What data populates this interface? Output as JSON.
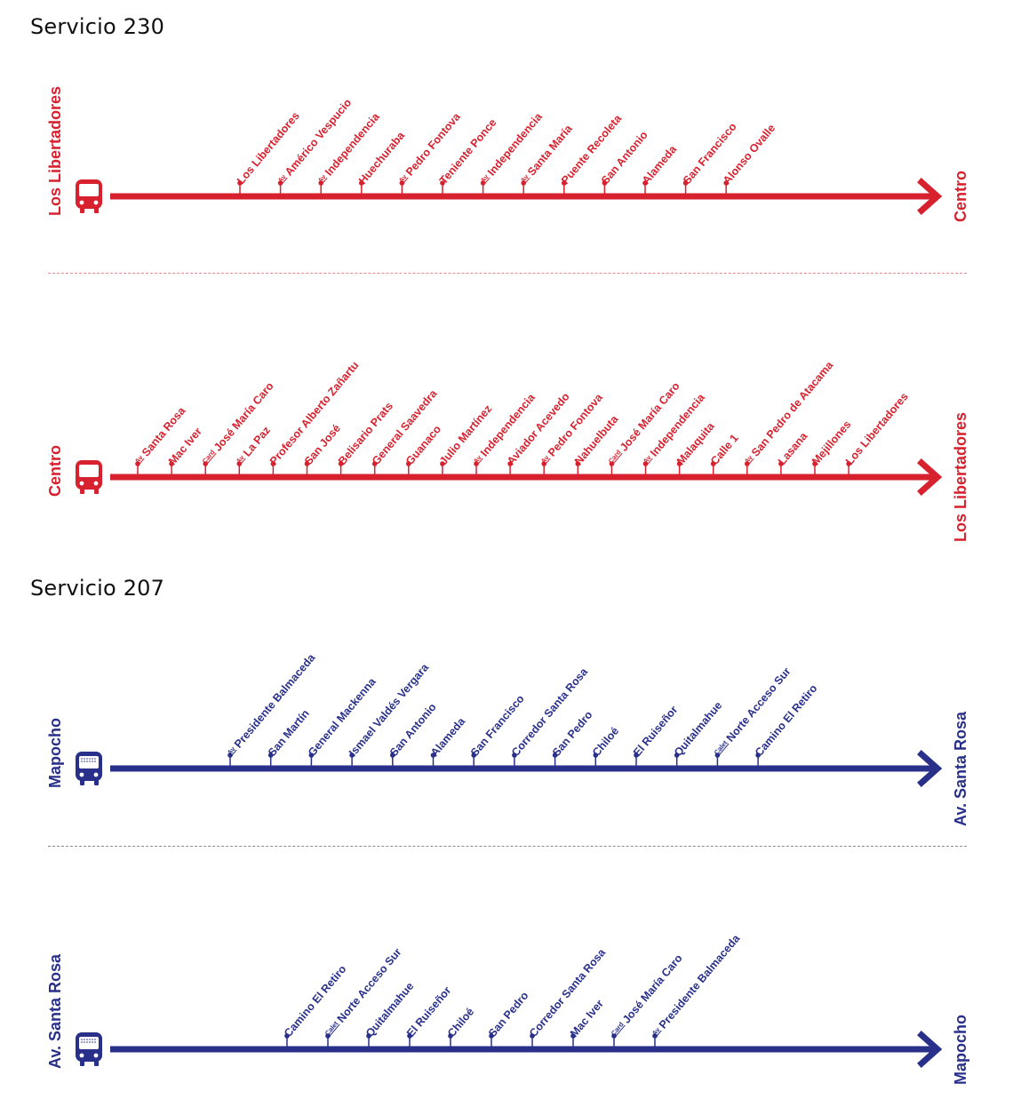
{
  "colors": {
    "red": "#d7212e",
    "blue": "#29308a",
    "red_divider": "#e9878d",
    "blue_divider": "#8a8a8a"
  },
  "services": [
    {
      "title": "Servicio 230",
      "color": "red",
      "routes": [
        {
          "origin": "Los Libertadores",
          "destination": "Centro",
          "stops": [
            {
              "prefix": "",
              "name": "Los Libertadores"
            },
            {
              "prefix": "Av",
              "name": "Américo Vespucio"
            },
            {
              "prefix": "Av",
              "name": "Independencia"
            },
            {
              "prefix": "",
              "name": "Huechuraba"
            },
            {
              "prefix": "Av",
              "name": "Pedro Fontova"
            },
            {
              "prefix": "",
              "name": "Teniente Ponce"
            },
            {
              "prefix": "Av",
              "name": "Independencia"
            },
            {
              "prefix": "Av",
              "name": "Santa María"
            },
            {
              "prefix": "",
              "name": "Puente Recoleta"
            },
            {
              "prefix": "",
              "name": "San Antonio"
            },
            {
              "prefix": "",
              "name": "Alameda"
            },
            {
              "prefix": "",
              "name": "San Francisco"
            },
            {
              "prefix": "",
              "name": "Alonso Ovalle"
            }
          ]
        },
        {
          "origin": "Centro",
          "destination": "Los Libertadores",
          "stops": [
            {
              "prefix": "Av",
              "name": "Santa Rosa"
            },
            {
              "prefix": "",
              "name": "Mac Iver"
            },
            {
              "prefix": "Card",
              "name": "José María Caro"
            },
            {
              "prefix": "Av",
              "name": "La Paz"
            },
            {
              "prefix": "",
              "name": "Profesor Alberto Zañartu"
            },
            {
              "prefix": "",
              "name": "San José"
            },
            {
              "prefix": "",
              "name": "Belisario Prats"
            },
            {
              "prefix": "",
              "name": "General Saavedra"
            },
            {
              "prefix": "",
              "name": "Guanaco"
            },
            {
              "prefix": "",
              "name": "Julio Martínez"
            },
            {
              "prefix": "Av",
              "name": "Independencia"
            },
            {
              "prefix": "",
              "name": "Aviador Acevedo"
            },
            {
              "prefix": "Av",
              "name": "Pedro Fontova"
            },
            {
              "prefix": "",
              "name": "Nahuelbuta"
            },
            {
              "prefix": "Card",
              "name": "José María Caro"
            },
            {
              "prefix": "Av",
              "name": "Independencia"
            },
            {
              "prefix": "",
              "name": "Malaquita"
            },
            {
              "prefix": "",
              "name": "Calle 1"
            },
            {
              "prefix": "Av",
              "name": "San Pedro de Atacama"
            },
            {
              "prefix": "",
              "name": "Lasana"
            },
            {
              "prefix": "",
              "name": "Mejillones"
            },
            {
              "prefix": "",
              "name": "Los Libertadores"
            }
          ]
        }
      ]
    },
    {
      "title": "Servicio 207",
      "color": "blue",
      "routes": [
        {
          "origin": "Mapocho",
          "destination": "Av. Santa Rosa",
          "stops": [
            {
              "prefix": "Av",
              "name": "Presidente Balmaceda"
            },
            {
              "prefix": "",
              "name": "San Martín"
            },
            {
              "prefix": "",
              "name": "General Mackenna"
            },
            {
              "prefix": "",
              "name": "Ismael Valdés Vergara"
            },
            {
              "prefix": "",
              "name": "San Antonio"
            },
            {
              "prefix": "",
              "name": "Alameda"
            },
            {
              "prefix": "",
              "name": "San Francisco"
            },
            {
              "prefix": "",
              "name": "Corredor Santa Rosa"
            },
            {
              "prefix": "",
              "name": "San Pedro"
            },
            {
              "prefix": "",
              "name": "Chiloé"
            },
            {
              "prefix": "",
              "name": "El Ruiseñor"
            },
            {
              "prefix": "",
              "name": "Quitalmahue"
            },
            {
              "prefix": "Calet",
              "name": "Norte Acceso Sur"
            },
            {
              "prefix": "",
              "name": "Camino El Retiro"
            }
          ]
        },
        {
          "origin": "Av. Santa Rosa",
          "destination": "Mapocho",
          "stops": [
            {
              "prefix": "",
              "name": "Camino El Retiro"
            },
            {
              "prefix": "Calet",
              "name": "Norte Acceso Sur"
            },
            {
              "prefix": "",
              "name": "Quitalmahue"
            },
            {
              "prefix": "",
              "name": "El Ruiseñor"
            },
            {
              "prefix": "",
              "name": "Chiloé"
            },
            {
              "prefix": "",
              "name": "San Pedro"
            },
            {
              "prefix": "",
              "name": "Corredor Santa Rosa"
            },
            {
              "prefix": "",
              "name": "Mac Iver"
            },
            {
              "prefix": "Card",
              "name": "José María Caro"
            },
            {
              "prefix": "Av",
              "name": "Presidente Balmaceda"
            }
          ]
        }
      ]
    }
  ]
}
